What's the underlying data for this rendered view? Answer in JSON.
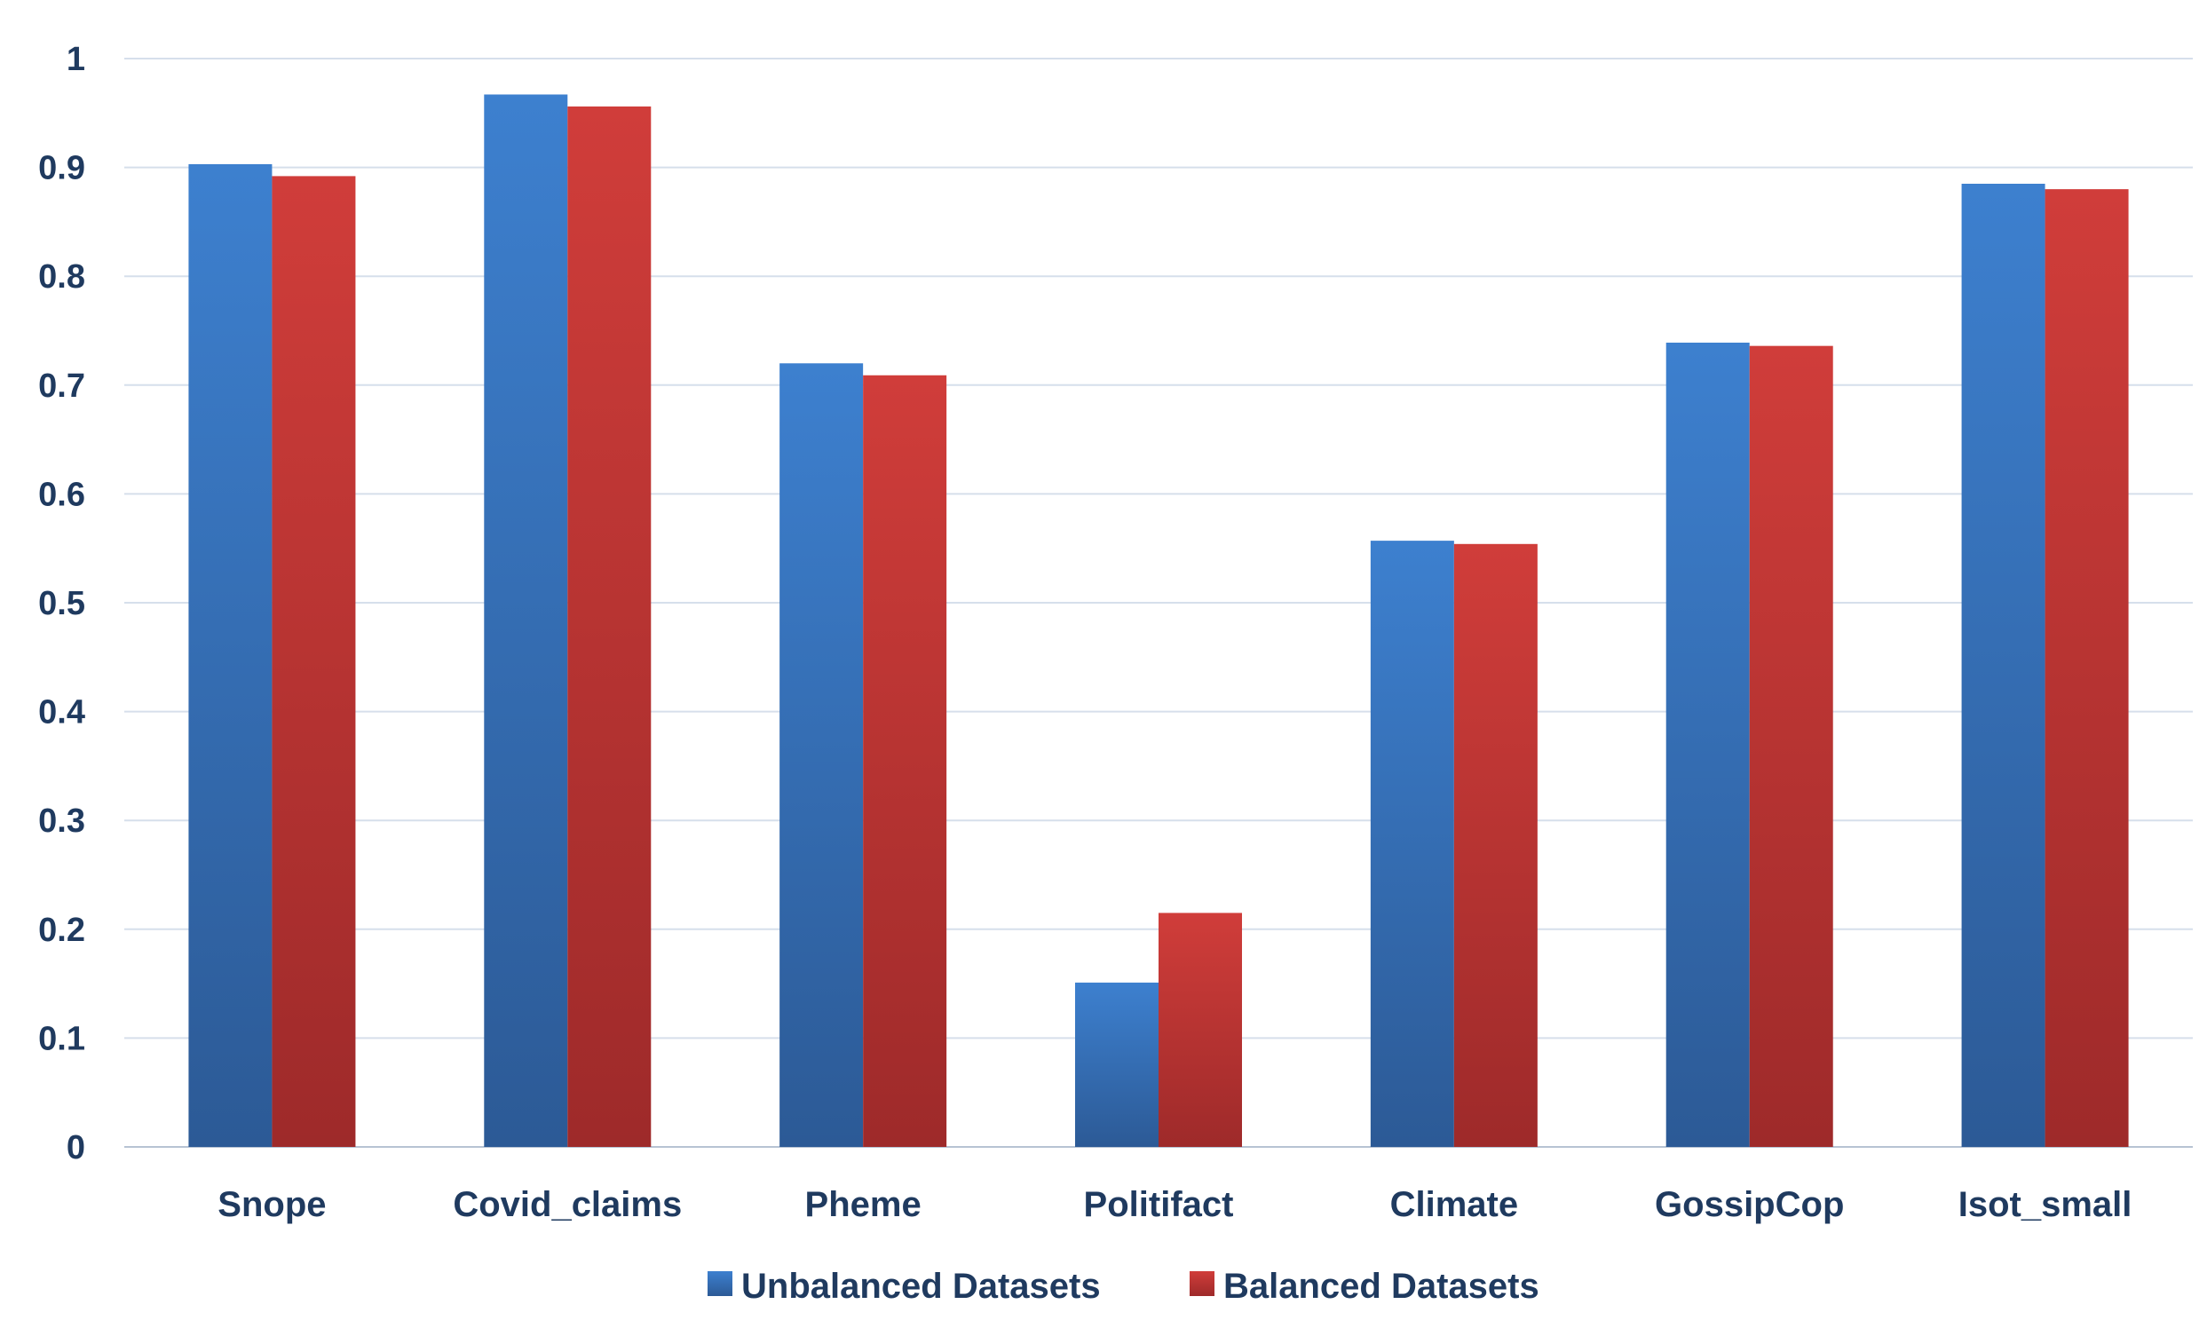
{
  "chart_data": {
    "type": "bar",
    "title": "",
    "xlabel": "",
    "ylabel": "",
    "ylim": [
      0,
      1
    ],
    "yticks": [
      "0",
      "0.1",
      "0.2",
      "0.3",
      "0.4",
      "0.5",
      "0.6",
      "0.7",
      "0.8",
      "0.9",
      "1"
    ],
    "categories": [
      "Snope",
      "Covid_claims",
      "Pheme",
      "Politifact",
      "Climate",
      "GossipCop",
      "Isot_small"
    ],
    "series": [
      {
        "name": "Unbalanced Datasets",
        "color": "#3a7dc9",
        "values": [
          0.903,
          0.967,
          0.72,
          0.151,
          0.557,
          0.739,
          0.885
        ]
      },
      {
        "name": "Balanced Datasets",
        "color": "#c93a3a",
        "values": [
          0.892,
          0.956,
          0.709,
          0.215,
          0.554,
          0.736,
          0.88
        ]
      }
    ],
    "grid": true,
    "legend_position": "bottom"
  }
}
